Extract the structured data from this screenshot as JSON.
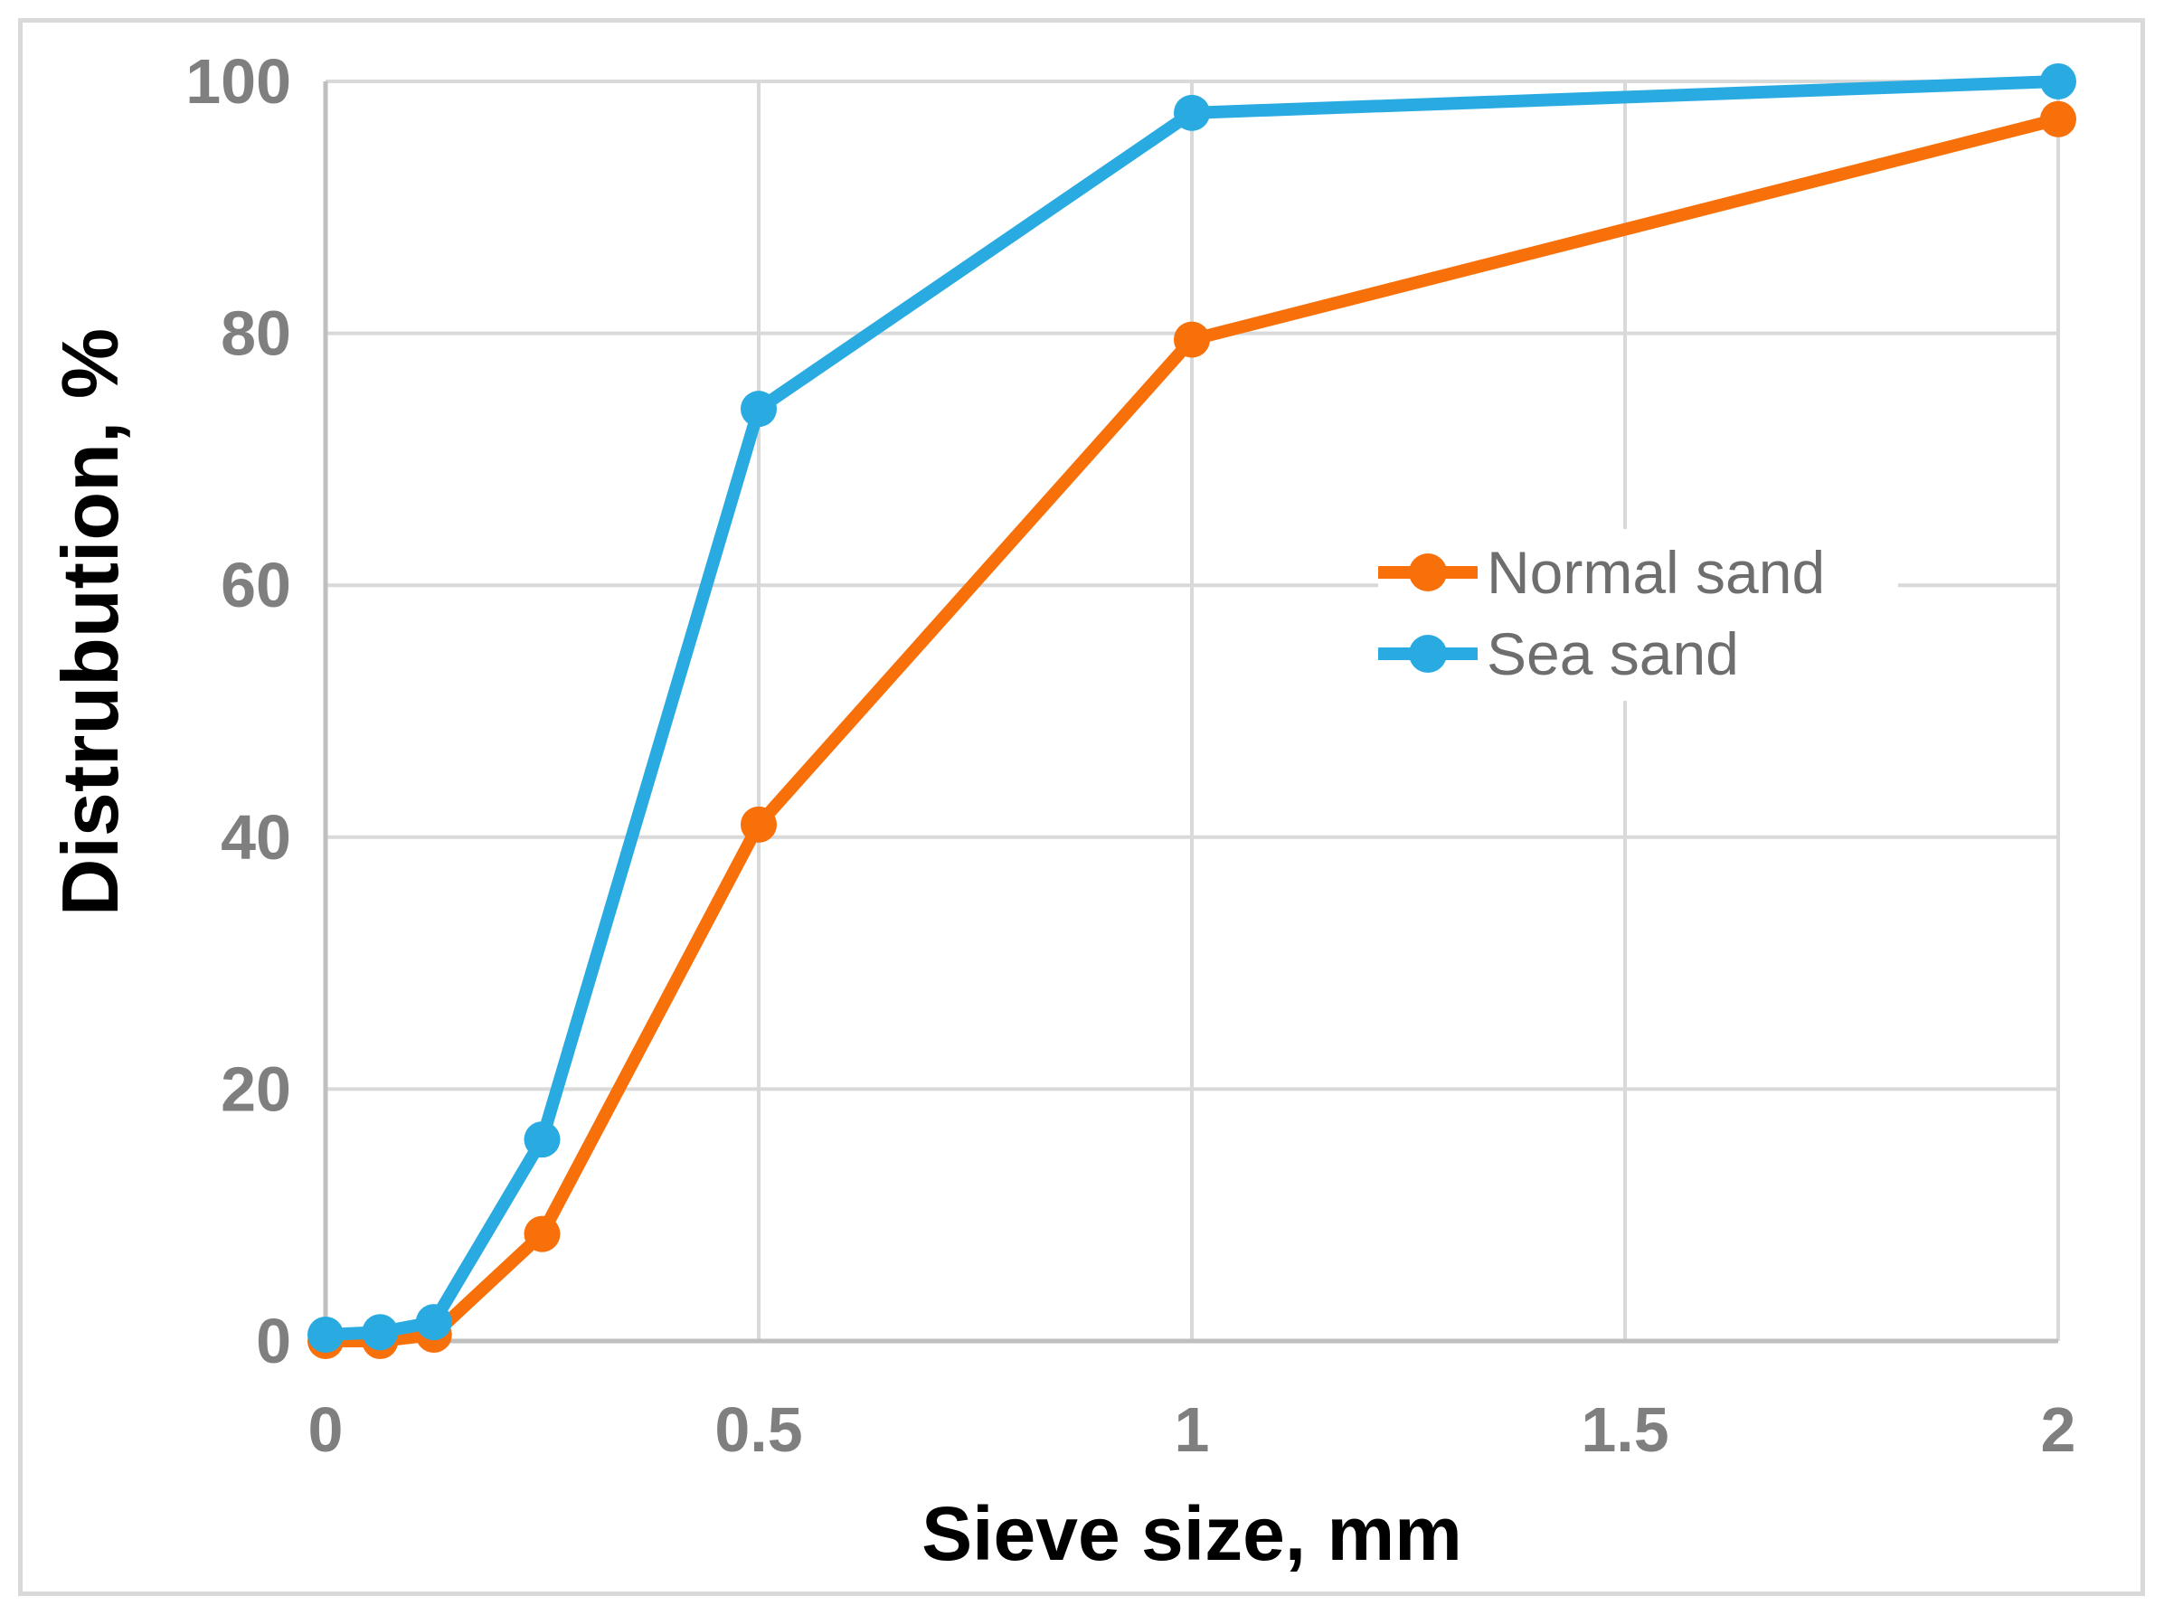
{
  "figure": {
    "background_color": "#FFFFFF",
    "border_color": "#D9D9D9"
  },
  "legend": {
    "items": [
      {
        "label": "Normal sand",
        "swatch": "line-with-dot-icon"
      },
      {
        "label": "Sea sand",
        "swatch": "line-with-dot-icon"
      }
    ]
  },
  "chart_data": {
    "type": "line",
    "xlabel": "Sieve size, mm",
    "ylabel": "Distrubution, %",
    "xlim": [
      0,
      2
    ],
    "ylim": [
      0,
      100
    ],
    "xticks": [
      "0",
      "0.5",
      "1",
      "1.5",
      "2"
    ],
    "xtick_values": [
      0,
      0.5,
      1,
      1.5,
      2
    ],
    "yticks": [
      "0",
      "20",
      "40",
      "60",
      "80",
      "100"
    ],
    "ytick_values": [
      0,
      20,
      40,
      60,
      80,
      100
    ],
    "grid": true,
    "legend_position": "center-right-inside",
    "x": [
      0,
      0.063,
      0.125,
      0.25,
      0.5,
      1,
      2
    ],
    "series": [
      {
        "name": "Normal sand",
        "color": "#F8700A",
        "values": [
          0,
          0,
          0.5,
          8.5,
          41,
          79.5,
          97
        ]
      },
      {
        "name": "Sea sand",
        "color": "#29ABE2",
        "values": [
          0.5,
          0.7,
          1.5,
          16,
          74,
          97.5,
          100
        ]
      }
    ],
    "style": {
      "gridline_color": "#D9D9D9",
      "axis_line_color": "#BFBFBF",
      "tick_label_color": "#7F7F7F",
      "line_width": 14,
      "marker_radius": 20
    }
  }
}
